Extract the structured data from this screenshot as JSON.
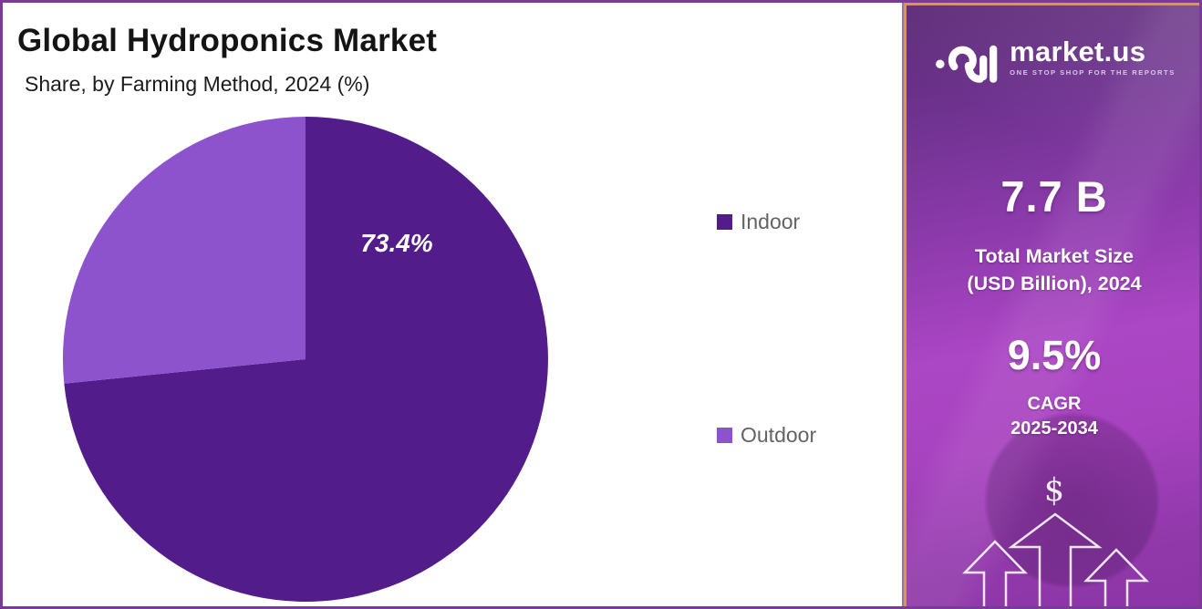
{
  "header": {
    "title": "Global Hydroponics Market",
    "subtitle": "Share, by Farming Method, 2024 (%)"
  },
  "chart_data": {
    "type": "pie",
    "title": "Global Hydroponics Market Share, by Farming Method, 2024 (%)",
    "start_angle": "top",
    "direction": "clockwise",
    "legend_position": "right",
    "slices": [
      {
        "label": "Indoor",
        "value": 73.4,
        "color": "#521c8a",
        "data_label": "73.4%"
      },
      {
        "label": "Outdoor",
        "value": 26.6,
        "color": "#8d53cd",
        "data_label": ""
      }
    ]
  },
  "sidebar": {
    "brand": {
      "name": "market.us",
      "tagline": "ONE STOP SHOP FOR THE REPORTS",
      "logo_icon": "market-us-logo"
    },
    "stats": [
      {
        "value": "7.7 B",
        "label_line1": "Total Market Size",
        "label_line2": "(USD Billion), 2024"
      },
      {
        "value": "9.5%",
        "label_line1": "CAGR",
        "label_line2": "2025-2034"
      }
    ],
    "dollar_symbol": "$",
    "colors": {
      "border": "#d89a3c",
      "background_top": "#5c2b76",
      "background_bottom": "#8c35a6"
    }
  },
  "frame": {
    "border_color": "#7a3a98"
  }
}
